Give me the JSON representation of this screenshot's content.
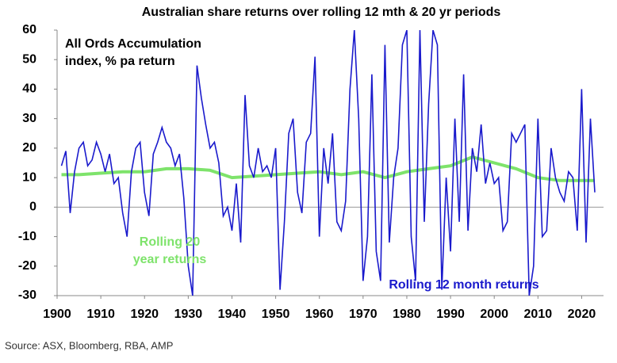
{
  "chart_data": {
    "type": "line",
    "title": "Australian share returns over rolling 12 mth & 20 yr periods",
    "annotations": [
      "All Ords Accumulation",
      "index, % pa return",
      "Rolling 20",
      "year returns",
      "Rolling 12 month returns"
    ],
    "source": "Source: ASX, Bloomberg, RBA, AMP",
    "xlim": [
      1900,
      2025
    ],
    "xticks": [
      1900,
      1910,
      1920,
      1930,
      1940,
      1950,
      1960,
      1970,
      1980,
      1990,
      2000,
      2010,
      2020
    ],
    "ylim": [
      -30,
      60
    ],
    "yticks": [
      -30,
      -20,
      -10,
      0,
      10,
      20,
      30,
      40,
      50,
      60
    ],
    "zero_line": true,
    "series": [
      {
        "name": "Rolling 12 month returns",
        "color": "#1a1acc",
        "x": [
          1901,
          1902,
          1903,
          1904,
          1905,
          1906,
          1907,
          1908,
          1909,
          1910,
          1911,
          1912,
          1913,
          1914,
          1915,
          1916,
          1917,
          1918,
          1919,
          1920,
          1921,
          1922,
          1923,
          1924,
          1925,
          1926,
          1927,
          1928,
          1929,
          1930,
          1931,
          1932,
          1933,
          1934,
          1935,
          1936,
          1937,
          1938,
          1939,
          1940,
          1941,
          1942,
          1943,
          1944,
          1945,
          1946,
          1947,
          1948,
          1949,
          1950,
          1951,
          1952,
          1953,
          1954,
          1955,
          1956,
          1957,
          1958,
          1959,
          1960,
          1961,
          1962,
          1963,
          1964,
          1965,
          1966,
          1967,
          1968,
          1969,
          1970,
          1971,
          1972,
          1973,
          1974,
          1975,
          1976,
          1977,
          1978,
          1979,
          1980,
          1981,
          1982,
          1983,
          1984,
          1985,
          1986,
          1987,
          1988,
          1989,
          1990,
          1991,
          1992,
          1993,
          1994,
          1995,
          1996,
          1997,
          1998,
          1999,
          2000,
          2001,
          2002,
          2003,
          2004,
          2005,
          2006,
          2007,
          2008,
          2009,
          2010,
          2011,
          2012,
          2013,
          2014,
          2015,
          2016,
          2017,
          2018,
          2019,
          2020,
          2021,
          2022,
          2023
        ],
        "values": [
          14,
          19,
          -2,
          12,
          20,
          22,
          14,
          16,
          22,
          18,
          12,
          18,
          8,
          10,
          -2,
          -10,
          12,
          20,
          22,
          5,
          -3,
          18,
          22,
          27,
          22,
          20,
          14,
          18,
          3,
          -20,
          -30,
          48,
          37,
          28,
          20,
          22,
          15,
          -3,
          0,
          -8,
          8,
          -12,
          38,
          14,
          10,
          20,
          12,
          14,
          10,
          20,
          -28,
          -5,
          25,
          30,
          5,
          -2,
          22,
          25,
          51,
          -10,
          20,
          8,
          25,
          -5,
          -8,
          2,
          40,
          60,
          30,
          -25,
          -10,
          45,
          -15,
          -25,
          55,
          -12,
          10,
          20,
          55,
          60,
          -10,
          -25,
          60,
          -5,
          35,
          60,
          55,
          -28,
          10,
          -15,
          30,
          -5,
          45,
          -8,
          20,
          12,
          28,
          8,
          15,
          8,
          10,
          -8,
          -5,
          25,
          22,
          25,
          28,
          -30,
          -20,
          30,
          -10,
          -8,
          20,
          10,
          5,
          2,
          12,
          10,
          -8,
          40,
          -12,
          30,
          5
        ]
      },
      {
        "name": "Rolling 20 year returns",
        "color": "#7ee36b",
        "x": [
          1901,
          1905,
          1910,
          1915,
          1920,
          1925,
          1930,
          1935,
          1938,
          1940,
          1945,
          1950,
          1955,
          1960,
          1965,
          1970,
          1975,
          1980,
          1985,
          1990,
          1995,
          2000,
          2005,
          2010,
          2015,
          2020,
          2023
        ],
        "values": [
          11,
          11,
          11.5,
          12,
          12,
          13,
          13,
          12.5,
          11,
          10,
          10.5,
          11,
          11.5,
          12,
          11,
          12,
          10,
          12,
          13,
          14,
          17,
          15,
          13,
          10,
          9,
          9,
          9
        ]
      }
    ]
  }
}
